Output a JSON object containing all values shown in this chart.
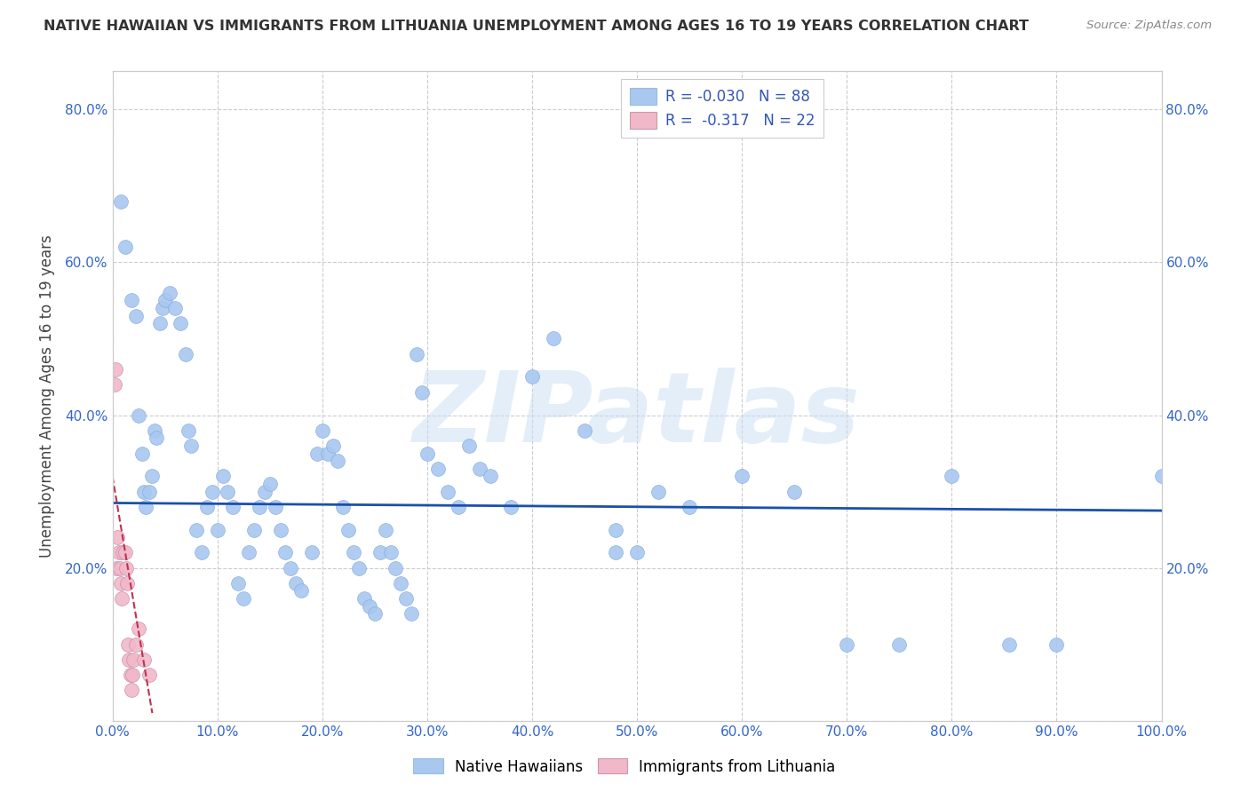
{
  "title": "NATIVE HAWAIIAN VS IMMIGRANTS FROM LITHUANIA UNEMPLOYMENT AMONG AGES 16 TO 19 YEARS CORRELATION CHART",
  "source": "Source: ZipAtlas.com",
  "ylabel": "Unemployment Among Ages 16 to 19 years",
  "xlim": [
    0,
    1.0
  ],
  "ylim": [
    0,
    0.85
  ],
  "xticks": [
    0.0,
    0.1,
    0.2,
    0.3,
    0.4,
    0.5,
    0.6,
    0.7,
    0.8,
    0.9,
    1.0
  ],
  "xticklabels": [
    "0.0%",
    "10.0%",
    "20.0%",
    "30.0%",
    "40.0%",
    "50.0%",
    "60.0%",
    "70.0%",
    "80.0%",
    "90.0%",
    "100.0%"
  ],
  "yticks": [
    0.0,
    0.2,
    0.4,
    0.6,
    0.8
  ],
  "yticklabels": [
    "",
    "20.0%",
    "40.0%",
    "60.0%",
    "80.0%"
  ],
  "background_color": "#ffffff",
  "grid_color": "#cccccc",
  "blue_color": "#a8c8f0",
  "pink_color": "#f0b8c8",
  "line_blue_color": "#1a50aa",
  "line_pink_color": "#c03050",
  "legend_R_blue": "-0.030",
  "legend_N_blue": "88",
  "legend_R_pink": "-0.317",
  "legend_N_pink": "22",
  "blue_scatter_x": [
    0.008,
    0.012,
    0.018,
    0.022,
    0.025,
    0.028,
    0.03,
    0.032,
    0.035,
    0.038,
    0.04,
    0.042,
    0.045,
    0.048,
    0.05,
    0.055,
    0.06,
    0.065,
    0.07,
    0.072,
    0.075,
    0.08,
    0.085,
    0.09,
    0.095,
    0.1,
    0.105,
    0.11,
    0.115,
    0.12,
    0.125,
    0.13,
    0.135,
    0.14,
    0.145,
    0.15,
    0.155,
    0.16,
    0.165,
    0.17,
    0.175,
    0.18,
    0.19,
    0.195,
    0.2,
    0.205,
    0.21,
    0.215,
    0.22,
    0.225,
    0.23,
    0.235,
    0.24,
    0.245,
    0.25,
    0.255,
    0.26,
    0.265,
    0.27,
    0.275,
    0.28,
    0.285,
    0.29,
    0.295,
    0.3,
    0.31,
    0.32,
    0.33,
    0.34,
    0.35,
    0.36,
    0.38,
    0.4,
    0.42,
    0.45,
    0.48,
    0.5,
    0.52,
    0.55,
    0.6,
    0.65,
    0.7,
    0.75,
    0.8,
    0.855,
    0.9,
    1.0,
    0.48
  ],
  "blue_scatter_y": [
    0.68,
    0.62,
    0.55,
    0.53,
    0.4,
    0.35,
    0.3,
    0.28,
    0.3,
    0.32,
    0.38,
    0.37,
    0.52,
    0.54,
    0.55,
    0.56,
    0.54,
    0.52,
    0.48,
    0.38,
    0.36,
    0.25,
    0.22,
    0.28,
    0.3,
    0.25,
    0.32,
    0.3,
    0.28,
    0.18,
    0.16,
    0.22,
    0.25,
    0.28,
    0.3,
    0.31,
    0.28,
    0.25,
    0.22,
    0.2,
    0.18,
    0.17,
    0.22,
    0.35,
    0.38,
    0.35,
    0.36,
    0.34,
    0.28,
    0.25,
    0.22,
    0.2,
    0.16,
    0.15,
    0.14,
    0.22,
    0.25,
    0.22,
    0.2,
    0.18,
    0.16,
    0.14,
    0.48,
    0.43,
    0.35,
    0.33,
    0.3,
    0.28,
    0.36,
    0.33,
    0.32,
    0.28,
    0.45,
    0.5,
    0.38,
    0.25,
    0.22,
    0.3,
    0.28,
    0.32,
    0.3,
    0.1,
    0.1,
    0.32,
    0.1,
    0.1,
    0.32,
    0.22
  ],
  "pink_scatter_x": [
    0.002,
    0.003,
    0.004,
    0.005,
    0.006,
    0.007,
    0.008,
    0.009,
    0.01,
    0.012,
    0.013,
    0.014,
    0.015,
    0.016,
    0.017,
    0.018,
    0.019,
    0.02,
    0.022,
    0.025,
    0.03,
    0.035
  ],
  "pink_scatter_y": [
    0.44,
    0.46,
    0.2,
    0.24,
    0.22,
    0.2,
    0.18,
    0.16,
    0.22,
    0.22,
    0.2,
    0.18,
    0.1,
    0.08,
    0.06,
    0.04,
    0.06,
    0.08,
    0.1,
    0.12,
    0.08,
    0.06
  ],
  "blue_trend_x": [
    0.0,
    1.0
  ],
  "blue_trend_y": [
    0.285,
    0.275
  ],
  "pink_trend_x": [
    0.0,
    0.038
  ],
  "pink_trend_y": [
    0.32,
    0.01
  ],
  "watermark": "ZIPatlas",
  "legend_label_blue": "Native Hawaiians",
  "legend_label_pink": "Immigrants from Lithuania"
}
